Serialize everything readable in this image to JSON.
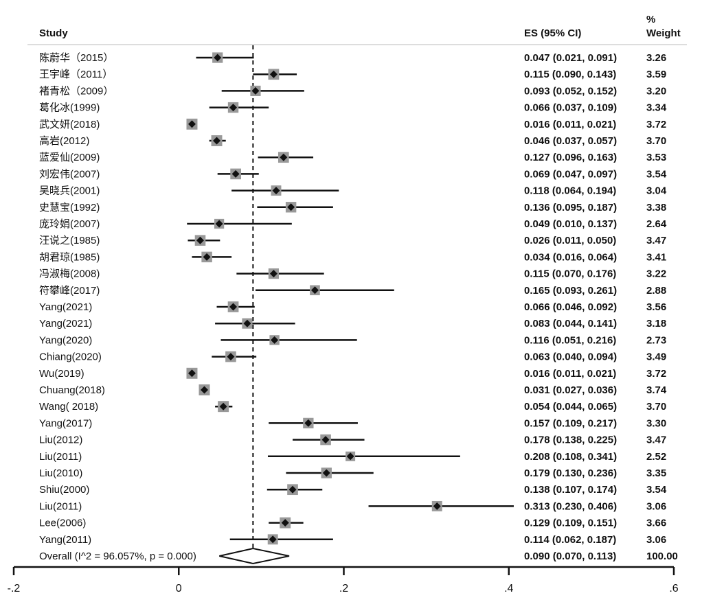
{
  "chart_data": {
    "type": "forest",
    "headers": {
      "study": "Study",
      "es": "ES (95% CI)",
      "weight_pct": "%",
      "weight": "Weight"
    },
    "studies": [
      {
        "label": "陈蔚华（2015）",
        "es": 0.047,
        "lo": 0.021,
        "hi": 0.091,
        "ci_text": "0.047 (0.021, 0.091)",
        "weight": "3.26"
      },
      {
        "label": "王宇峰（2011）",
        "es": 0.115,
        "lo": 0.09,
        "hi": 0.143,
        "ci_text": "0.115 (0.090, 0.143)",
        "weight": "3.59"
      },
      {
        "label": "褚青松（2009）",
        "es": 0.093,
        "lo": 0.052,
        "hi": 0.152,
        "ci_text": "0.093 (0.052, 0.152)",
        "weight": "3.20"
      },
      {
        "label": "葛化冰(1999)",
        "es": 0.066,
        "lo": 0.037,
        "hi": 0.109,
        "ci_text": "0.066 (0.037, 0.109)",
        "weight": "3.34"
      },
      {
        "label": "武文妍(2018)",
        "es": 0.016,
        "lo": 0.011,
        "hi": 0.021,
        "ci_text": "0.016 (0.011, 0.021)",
        "weight": "3.72"
      },
      {
        "label": "高岩(2012)",
        "es": 0.046,
        "lo": 0.037,
        "hi": 0.057,
        "ci_text": "0.046 (0.037, 0.057)",
        "weight": "3.70"
      },
      {
        "label": "蓝爱仙(2009)",
        "es": 0.127,
        "lo": 0.096,
        "hi": 0.163,
        "ci_text": "0.127 (0.096, 0.163)",
        "weight": "3.53"
      },
      {
        "label": "刘宏伟(2007)",
        "es": 0.069,
        "lo": 0.047,
        "hi": 0.097,
        "ci_text": "0.069 (0.047, 0.097)",
        "weight": "3.54"
      },
      {
        "label": "吴晓兵(2001)",
        "es": 0.118,
        "lo": 0.064,
        "hi": 0.194,
        "ci_text": "0.118 (0.064, 0.194)",
        "weight": "3.04"
      },
      {
        "label": "史慧宝(1992)",
        "es": 0.136,
        "lo": 0.095,
        "hi": 0.187,
        "ci_text": "0.136 (0.095, 0.187)",
        "weight": "3.38"
      },
      {
        "label": "庞玲娟(2007)",
        "es": 0.049,
        "lo": 0.01,
        "hi": 0.137,
        "ci_text": "0.049 (0.010, 0.137)",
        "weight": "2.64"
      },
      {
        "label": "汪说之(1985)",
        "es": 0.026,
        "lo": 0.011,
        "hi": 0.05,
        "ci_text": "0.026 (0.011, 0.050)",
        "weight": "3.47"
      },
      {
        "label": "胡君琼(1985)",
        "es": 0.034,
        "lo": 0.016,
        "hi": 0.064,
        "ci_text": "0.034 (0.016, 0.064)",
        "weight": "3.41"
      },
      {
        "label": "冯淑梅(2008)",
        "es": 0.115,
        "lo": 0.07,
        "hi": 0.176,
        "ci_text": "0.115 (0.070, 0.176)",
        "weight": "3.22"
      },
      {
        "label": "符攀峰(2017)",
        "es": 0.165,
        "lo": 0.093,
        "hi": 0.261,
        "ci_text": "0.165 (0.093, 0.261)",
        "weight": "2.88"
      },
      {
        "label": "Yang(2021)",
        "es": 0.066,
        "lo": 0.046,
        "hi": 0.092,
        "ci_text": "0.066 (0.046, 0.092)",
        "weight": "3.56"
      },
      {
        "label": "Yang(2021)",
        "es": 0.083,
        "lo": 0.044,
        "hi": 0.141,
        "ci_text": "0.083 (0.044, 0.141)",
        "weight": "3.18"
      },
      {
        "label": "Yang(2020)",
        "es": 0.116,
        "lo": 0.051,
        "hi": 0.216,
        "ci_text": "0.116 (0.051, 0.216)",
        "weight": "2.73"
      },
      {
        "label": "Chiang(2020)",
        "es": 0.063,
        "lo": 0.04,
        "hi": 0.094,
        "ci_text": "0.063 (0.040, 0.094)",
        "weight": "3.49"
      },
      {
        "label": "Wu(2019)",
        "es": 0.016,
        "lo": 0.011,
        "hi": 0.021,
        "ci_text": "0.016 (0.011, 0.021)",
        "weight": "3.72"
      },
      {
        "label": "Chuang(2018)",
        "es": 0.031,
        "lo": 0.027,
        "hi": 0.036,
        "ci_text": "0.031 (0.027, 0.036)",
        "weight": "3.74"
      },
      {
        "label": "Wang( 2018)",
        "es": 0.054,
        "lo": 0.044,
        "hi": 0.065,
        "ci_text": "0.054 (0.044, 0.065)",
        "weight": "3.70"
      },
      {
        "label": "Yang(2017)",
        "es": 0.157,
        "lo": 0.109,
        "hi": 0.217,
        "ci_text": "0.157 (0.109, 0.217)",
        "weight": "3.30"
      },
      {
        "label": "Liu(2012)",
        "es": 0.178,
        "lo": 0.138,
        "hi": 0.225,
        "ci_text": "0.178 (0.138, 0.225)",
        "weight": "3.47"
      },
      {
        "label": "Liu(2011)",
        "es": 0.208,
        "lo": 0.108,
        "hi": 0.341,
        "ci_text": "0.208 (0.108, 0.341)",
        "weight": "2.52"
      },
      {
        "label": "Liu(2010)",
        "es": 0.179,
        "lo": 0.13,
        "hi": 0.236,
        "ci_text": "0.179 (0.130, 0.236)",
        "weight": "3.35"
      },
      {
        "label": "Shiu(2000)",
        "es": 0.138,
        "lo": 0.107,
        "hi": 0.174,
        "ci_text": "0.138 (0.107, 0.174)",
        "weight": "3.54"
      },
      {
        "label": "Liu(2011)",
        "es": 0.313,
        "lo": 0.23,
        "hi": 0.406,
        "ci_text": "0.313 (0.230, 0.406)",
        "weight": "3.06"
      },
      {
        "label": "Lee(2006)",
        "es": 0.129,
        "lo": 0.109,
        "hi": 0.151,
        "ci_text": "0.129 (0.109, 0.151)",
        "weight": "3.66"
      },
      {
        "label": "Yang(2011)",
        "es": 0.114,
        "lo": 0.062,
        "hi": 0.187,
        "ci_text": "0.114 (0.062, 0.187)",
        "weight": "3.06"
      }
    ],
    "overall": {
      "label": "Overall  (I^2 = 96.057%, p = 0.000)",
      "es": 0.09,
      "lo": 0.07,
      "hi": 0.113,
      "ci_text": "0.090 (0.070, 0.113)",
      "weight": "100.00"
    },
    "x_axis": {
      "ticks": [
        -0.2,
        0,
        0.2,
        0.4,
        0.6
      ],
      "tick_labels": [
        "-.2",
        "0",
        ".2",
        ".4",
        ".6"
      ],
      "xlim": [
        -0.2,
        0.6
      ]
    },
    "reference_line": 0.09,
    "colors": {
      "line": "#111111",
      "box": "#999999",
      "point": "#111111"
    }
  }
}
